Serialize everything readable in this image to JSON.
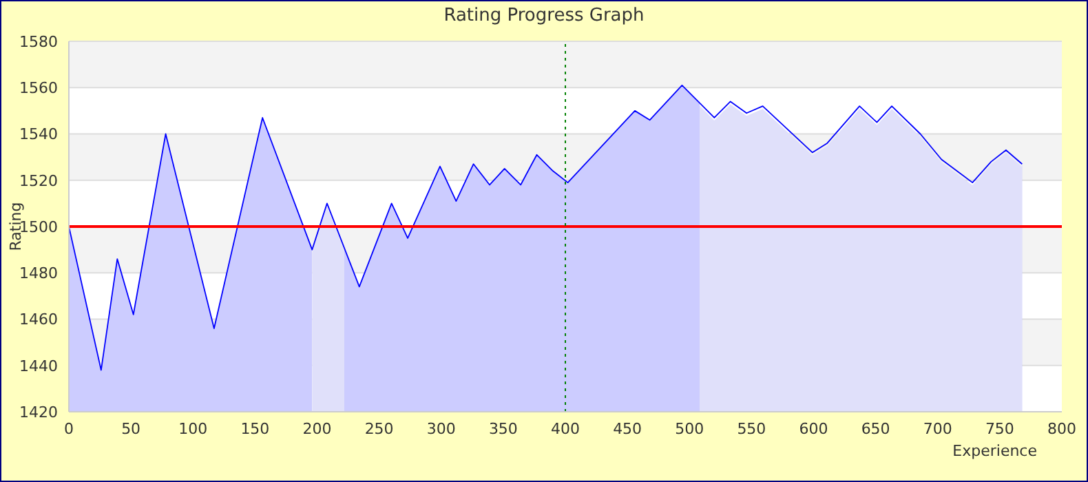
{
  "chart_data": {
    "type": "area",
    "title": "Rating Progress Graph",
    "xlabel": "Experience",
    "ylabel": "Rating",
    "x": [
      0,
      26,
      39,
      52,
      78,
      117,
      156,
      196,
      208,
      234,
      260,
      273,
      299,
      312,
      326,
      339,
      351,
      364,
      377,
      390,
      402,
      456,
      468,
      494,
      520,
      533,
      546,
      559,
      599,
      611,
      637,
      651,
      663,
      686,
      703,
      728,
      743,
      755,
      768
    ],
    "series": [
      {
        "color": "#0000ff",
        "values": [
          1500,
          1438,
          1486,
          1462,
          1540,
          1456,
          1547,
          1490,
          1510,
          1474,
          1510,
          1495,
          1526,
          1511,
          1527,
          1518,
          1525,
          1518,
          1531,
          1524,
          1519,
          1550,
          1546,
          1561,
          1547,
          1554,
          1549,
          1552,
          1532,
          1536,
          1552,
          1545,
          1552,
          1540,
          1529,
          1519,
          1528,
          1533,
          1527
        ]
      }
    ],
    "xlim": [
      0,
      800
    ],
    "xticks": [
      0,
      50,
      100,
      150,
      200,
      250,
      300,
      350,
      400,
      450,
      500,
      550,
      600,
      650,
      700,
      750,
      800
    ],
    "ylim": [
      1420,
      1580
    ],
    "yticks": [
      1420,
      1440,
      1460,
      1480,
      1500,
      1520,
      1540,
      1560,
      1580
    ],
    "grid": "y",
    "ref_lines": [
      {
        "axis": "y",
        "value": 1500,
        "color": "#ff0000",
        "line_style": "solid"
      },
      {
        "axis": "x",
        "value": 400,
        "color": "#008000",
        "line_style": "dotted"
      }
    ],
    "bands": [
      {
        "axis": "x",
        "from": 196,
        "to": 222,
        "color": "#e0e0fa"
      },
      {
        "axis": "x",
        "from": 508,
        "to": 768,
        "color": "#e0e0fa"
      }
    ]
  }
}
